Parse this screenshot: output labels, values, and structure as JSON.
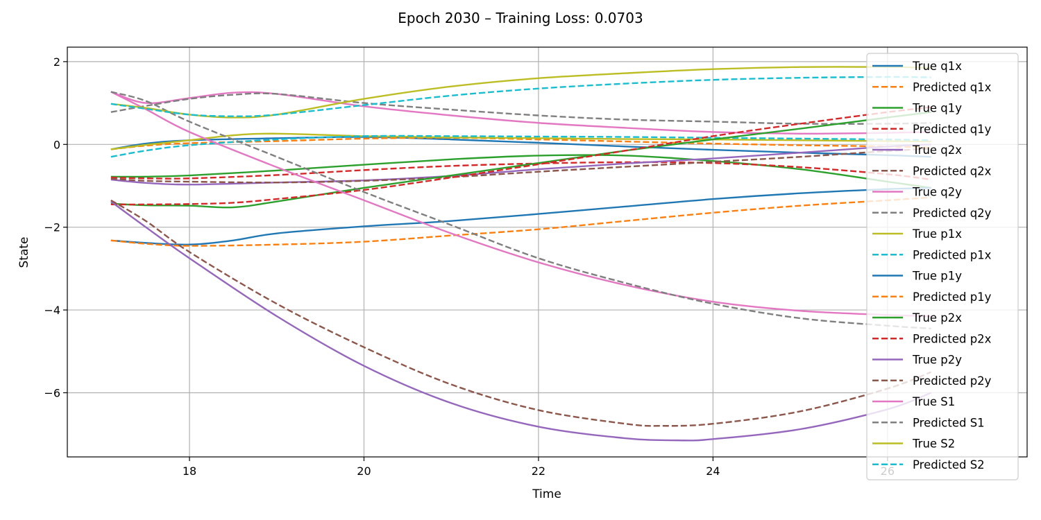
{
  "chart_data": {
    "type": "line",
    "title": "Epoch 2030 – Training Loss: 0.0703",
    "xlabel": "Time",
    "ylabel": "State",
    "xlim": [
      16.6,
      27.6
    ],
    "ylim": [
      -7.55,
      2.35
    ],
    "xticks": [
      18,
      20,
      22,
      24,
      26
    ],
    "yticks": [
      -6,
      -4,
      -2,
      0,
      2
    ],
    "grid": true,
    "legend_position": "upper-right",
    "series": [
      {
        "name": "True q1x",
        "color": "#1f77b4",
        "dash": "solid",
        "x": [
          17.1,
          17.5,
          18.0,
          19.0,
          20.0,
          21.0,
          22.0,
          23.0,
          24.0,
          25.0,
          26.0,
          26.5
        ],
        "y": [
          -0.12,
          0.02,
          0.1,
          0.15,
          0.18,
          0.12,
          0.04,
          -0.05,
          -0.13,
          -0.2,
          -0.26,
          -0.3
        ]
      },
      {
        "name": "Predicted q1x",
        "color": "#ff7f0e",
        "dash": "dashed",
        "x": [
          17.1,
          17.5,
          18.0,
          19.0,
          20.0,
          21.0,
          22.0,
          23.0,
          24.0,
          25.0,
          26.0,
          26.5
        ],
        "y": [
          -0.12,
          -0.03,
          0.03,
          0.08,
          0.14,
          0.16,
          0.12,
          0.07,
          0.02,
          -0.02,
          -0.05,
          -0.08
        ]
      },
      {
        "name": "True q1y",
        "color": "#2ca02c",
        "dash": "solid",
        "x": [
          17.1,
          17.5,
          18.0,
          19.0,
          20.0,
          21.0,
          22.0,
          23.0,
          24.0,
          25.0,
          26.0,
          26.5
        ],
        "y": [
          -0.78,
          -0.78,
          -0.75,
          -0.63,
          -0.49,
          -0.36,
          -0.27,
          -0.27,
          -0.4,
          -0.6,
          -0.9,
          -1.05
        ]
      },
      {
        "name": "Predicted q1y",
        "color": "#d62728",
        "dash": "dashed",
        "x": [
          17.1,
          17.5,
          18.0,
          19.0,
          20.0,
          21.0,
          22.0,
          23.0,
          24.0,
          25.0,
          26.0,
          26.5
        ],
        "y": [
          -0.8,
          -0.82,
          -0.82,
          -0.74,
          -0.62,
          -0.52,
          -0.46,
          -0.43,
          -0.45,
          -0.55,
          -0.72,
          -0.85
        ]
      },
      {
        "name": "True q2x",
        "color": "#9467bd",
        "dash": "solid",
        "x": [
          17.1,
          17.5,
          18.0,
          19.0,
          20.0,
          21.0,
          22.0,
          23.0,
          24.0,
          25.0,
          26.0,
          26.5
        ],
        "y": [
          -0.85,
          -0.93,
          -0.97,
          -0.92,
          -0.87,
          -0.76,
          -0.6,
          -0.46,
          -0.34,
          -0.2,
          -0.05,
          0.0
        ]
      },
      {
        "name": "Predicted q2x",
        "color": "#8c564b",
        "dash": "dashed",
        "x": [
          17.1,
          17.5,
          18.0,
          19.0,
          20.0,
          21.0,
          22.0,
          23.0,
          24.0,
          25.0,
          26.0,
          26.5
        ],
        "y": [
          -0.83,
          -0.88,
          -0.9,
          -0.92,
          -0.88,
          -0.79,
          -0.66,
          -0.54,
          -0.42,
          -0.3,
          -0.16,
          -0.1
        ]
      },
      {
        "name": "True q2y",
        "color": "#e377c2",
        "dash": "solid",
        "x": [
          17.1,
          17.5,
          18.0,
          18.5,
          19.0,
          20.0,
          21.0,
          22.0,
          23.0,
          24.0,
          25.0,
          26.0,
          26.5
        ],
        "y": [
          1.27,
          1.0,
          1.12,
          1.25,
          1.22,
          0.92,
          0.7,
          0.52,
          0.4,
          0.3,
          0.26,
          0.28,
          0.3
        ]
      },
      {
        "name": "Predicted q2y",
        "color": "#7f7f7f",
        "dash": "dashed",
        "x": [
          17.1,
          17.5,
          18.0,
          18.5,
          19.0,
          20.0,
          21.0,
          22.0,
          23.0,
          24.0,
          25.0,
          26.0,
          26.5
        ],
        "y": [
          0.78,
          0.93,
          1.1,
          1.2,
          1.22,
          1.0,
          0.84,
          0.7,
          0.6,
          0.55,
          0.5,
          0.5,
          0.52
        ]
      },
      {
        "name": "True p1x",
        "color": "#bcbd22",
        "dash": "solid",
        "x": [
          17.1,
          17.5,
          18.0,
          18.5,
          19.0,
          20.0,
          21.0,
          22.0,
          23.0,
          24.0,
          25.0,
          26.0,
          26.5
        ],
        "y": [
          -0.12,
          -0.01,
          0.1,
          0.22,
          0.26,
          0.2,
          0.17,
          0.15,
          0.13,
          0.12,
          0.1,
          0.08,
          0.07
        ]
      },
      {
        "name": "Predicted p1x",
        "color": "#17becf",
        "dash": "dashed",
        "x": [
          17.1,
          17.5,
          18.0,
          19.0,
          20.0,
          21.0,
          22.0,
          23.0,
          24.0,
          25.0,
          26.0,
          26.5
        ],
        "y": [
          -0.3,
          -0.15,
          -0.02,
          0.12,
          0.2,
          0.2,
          0.19,
          0.18,
          0.16,
          0.14,
          0.12,
          0.1
        ]
      },
      {
        "name": "True p1y",
        "color": "#1f77b4",
        "dash": "solid",
        "x": [
          17.1,
          17.5,
          18.0,
          18.5,
          19.0,
          20.0,
          21.0,
          22.0,
          23.0,
          24.0,
          25.0,
          26.0,
          26.5
        ],
        "y": [
          -2.32,
          -2.38,
          -2.42,
          -2.32,
          -2.15,
          -1.98,
          -1.85,
          -1.68,
          -1.5,
          -1.32,
          -1.18,
          -1.08,
          -1.05
        ]
      },
      {
        "name": "Predicted p1y",
        "color": "#ff7f0e",
        "dash": "dashed",
        "x": [
          17.1,
          17.5,
          18.0,
          19.0,
          20.0,
          21.0,
          22.0,
          23.0,
          24.0,
          25.0,
          26.0,
          26.5
        ],
        "y": [
          -2.32,
          -2.4,
          -2.45,
          -2.42,
          -2.35,
          -2.2,
          -2.05,
          -1.85,
          -1.65,
          -1.48,
          -1.35,
          -1.28
        ]
      },
      {
        "name": "True p2x",
        "color": "#2ca02c",
        "dash": "solid",
        "x": [
          17.1,
          17.5,
          18.0,
          18.5,
          19.0,
          20.0,
          21.0,
          22.0,
          23.0,
          24.0,
          25.0,
          26.0,
          26.5
        ],
        "y": [
          -1.43,
          -1.47,
          -1.48,
          -1.52,
          -1.38,
          -1.05,
          -0.75,
          -0.45,
          -0.15,
          0.12,
          0.38,
          0.65,
          0.78
        ]
      },
      {
        "name": "Predicted p2x",
        "color": "#d62728",
        "dash": "dashed",
        "x": [
          17.1,
          17.5,
          18.0,
          18.5,
          19.0,
          20.0,
          21.0,
          22.0,
          23.0,
          24.0,
          25.0,
          26.0,
          26.5
        ],
        "y": [
          -1.45,
          -1.45,
          -1.44,
          -1.41,
          -1.32,
          -1.1,
          -0.8,
          -0.48,
          -0.15,
          0.2,
          0.5,
          0.78,
          0.9
        ]
      },
      {
        "name": "True p2y",
        "color": "#9467bd",
        "dash": "solid",
        "x": [
          17.1,
          17.5,
          18.0,
          19.0,
          20.0,
          21.0,
          22.0,
          23.0,
          23.6,
          24.0,
          25.0,
          26.0,
          26.5
        ],
        "y": [
          -1.38,
          -2.0,
          -2.75,
          -4.15,
          -5.35,
          -6.25,
          -6.82,
          -7.1,
          -7.15,
          -7.12,
          -6.88,
          -6.4,
          -6.0
        ]
      },
      {
        "name": "Predicted p2y",
        "color": "#8c564b",
        "dash": "dashed",
        "x": [
          17.1,
          17.5,
          18.0,
          19.0,
          20.0,
          21.0,
          22.0,
          23.0,
          23.4,
          24.0,
          25.0,
          26.0,
          26.5
        ],
        "y": [
          -1.35,
          -1.85,
          -2.6,
          -3.85,
          -4.9,
          -5.8,
          -6.42,
          -6.75,
          -6.8,
          -6.75,
          -6.45,
          -5.9,
          -5.5
        ]
      },
      {
        "name": "True S1",
        "color": "#e377c2",
        "dash": "solid",
        "x": [
          17.1,
          17.5,
          18.0,
          19.0,
          20.0,
          21.0,
          22.0,
          23.0,
          24.0,
          25.0,
          26.0,
          26.5
        ],
        "y": [
          1.27,
          0.85,
          0.3,
          -0.55,
          -1.35,
          -2.15,
          -2.85,
          -3.4,
          -3.8,
          -4.02,
          -4.12,
          -4.15
        ]
      },
      {
        "name": "Predicted S1",
        "color": "#7f7f7f",
        "dash": "dashed",
        "x": [
          17.1,
          17.5,
          18.0,
          19.0,
          20.0,
          21.0,
          22.0,
          23.0,
          24.0,
          25.0,
          26.0,
          26.5
        ],
        "y": [
          1.27,
          1.05,
          0.55,
          -0.3,
          -1.15,
          -1.95,
          -2.75,
          -3.35,
          -3.85,
          -4.2,
          -4.38,
          -4.45
        ]
      },
      {
        "name": "True S2",
        "color": "#bcbd22",
        "dash": "solid",
        "x": [
          17.1,
          17.5,
          18.0,
          18.5,
          19.0,
          20.0,
          21.0,
          22.0,
          23.0,
          24.0,
          25.0,
          26.0,
          26.5
        ],
        "y": [
          0.98,
          0.88,
          0.72,
          0.65,
          0.72,
          1.1,
          1.4,
          1.6,
          1.72,
          1.82,
          1.87,
          1.87,
          1.85
        ]
      },
      {
        "name": "Predicted S2",
        "color": "#17becf",
        "dash": "dashed",
        "x": [
          17.1,
          17.5,
          18.0,
          18.5,
          19.0,
          20.0,
          21.0,
          22.0,
          23.0,
          24.0,
          25.0,
          26.0,
          26.5
        ],
        "y": [
          0.98,
          0.86,
          0.72,
          0.68,
          0.72,
          0.95,
          1.18,
          1.35,
          1.47,
          1.56,
          1.61,
          1.63,
          1.62
        ]
      }
    ]
  }
}
